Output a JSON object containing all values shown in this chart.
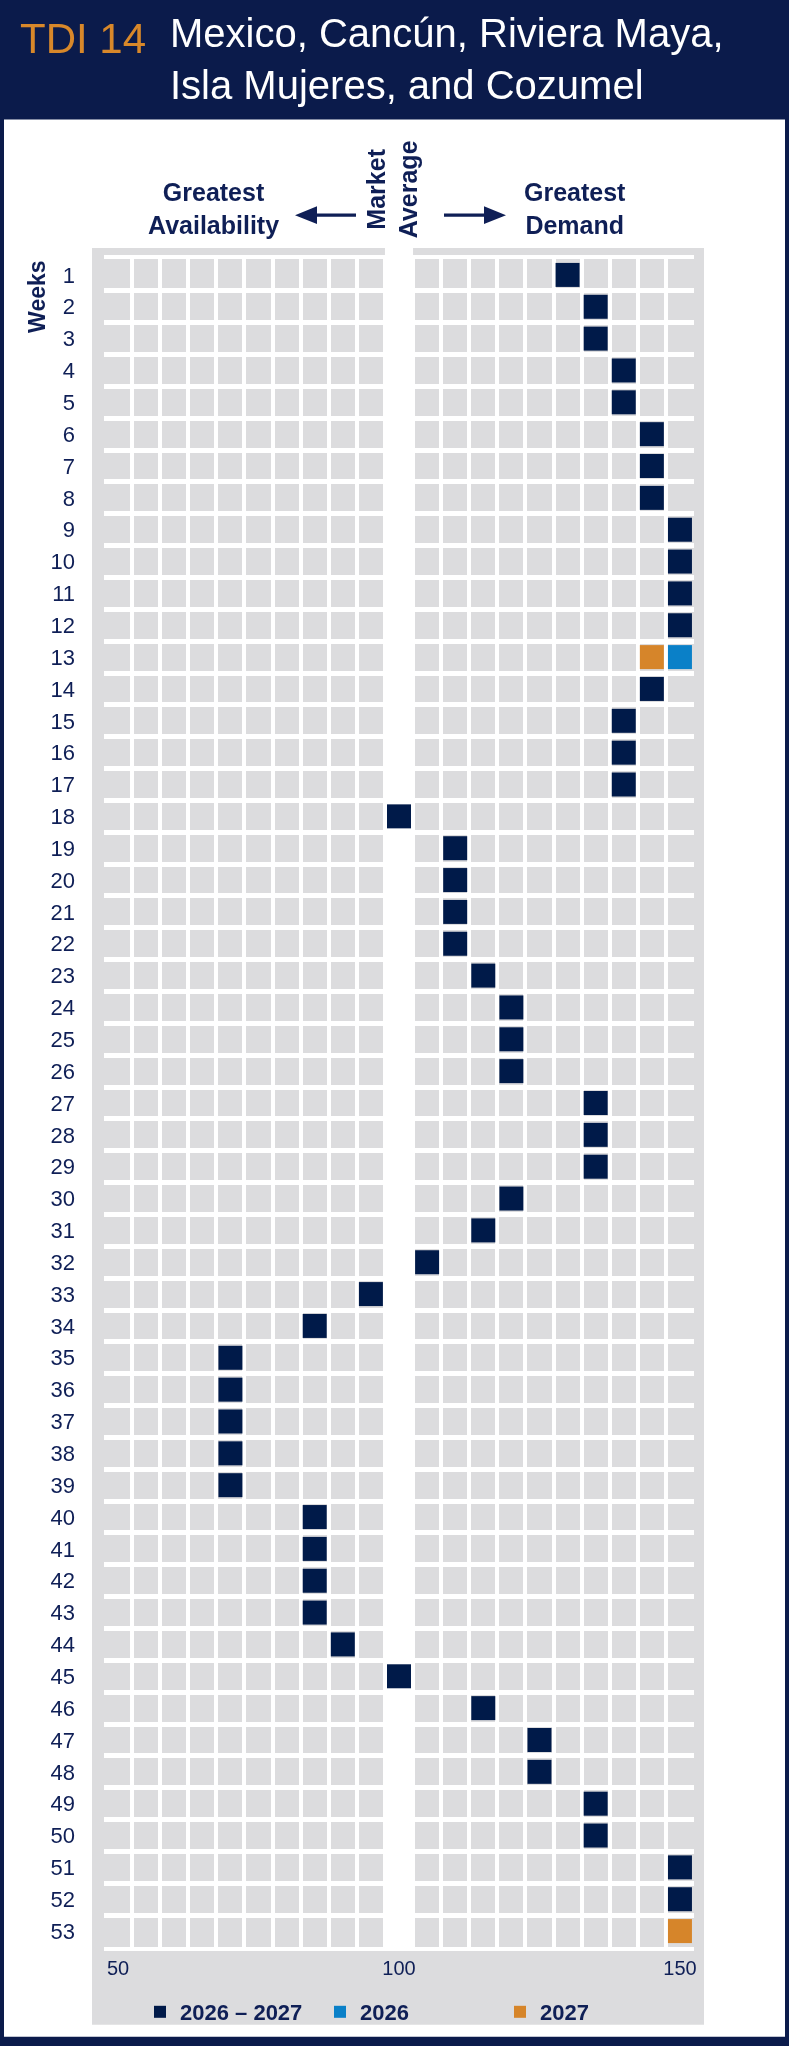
{
  "chart_data": {
    "type": "scatter",
    "orientation": "horizontal",
    "title": "TDI 14",
    "subtitle": "Mexico, Cancún, Riviera Maya, Isla Mujeres, and Cozumel",
    "ylabel": "Weeks",
    "annotations": [
      "Greatest Availability",
      "Greatest Demand"
    ],
    "categories": [
      "1",
      "2",
      "3",
      "4",
      "5",
      "6",
      "7",
      "8",
      "9",
      "10",
      "11",
      "12",
      "13",
      "14",
      "15",
      "16",
      "17",
      "18",
      "19",
      "20",
      "21",
      "22",
      "23",
      "24",
      "25",
      "26",
      "27",
      "28",
      "29",
      "30",
      "31",
      "32",
      "33",
      "34",
      "35",
      "36",
      "37",
      "38",
      "39",
      "40",
      "41",
      "42",
      "43",
      "44",
      "45",
      "46",
      "47",
      "48",
      "49",
      "50",
      "51",
      "52",
      "53"
    ],
    "series": [
      {
        "name": "2026 – 2027",
        "color": "#001a49",
        "values": [
          130,
          135,
          135,
          140,
          140,
          145,
          145,
          145,
          150,
          150,
          150,
          150,
          null,
          145,
          140,
          140,
          140,
          100,
          110,
          110,
          110,
          110,
          115,
          120,
          120,
          120,
          135,
          135,
          135,
          120,
          115,
          105,
          95,
          85,
          70,
          70,
          70,
          70,
          70,
          85,
          85,
          85,
          85,
          90,
          100,
          115,
          125,
          125,
          135,
          135,
          150,
          150,
          null
        ]
      },
      {
        "name": "2026",
        "color": "#0a80c8",
        "values": [
          null,
          null,
          null,
          null,
          null,
          null,
          null,
          null,
          null,
          null,
          null,
          null,
          150,
          null,
          null,
          null,
          null,
          null,
          null,
          null,
          null,
          null,
          null,
          null,
          null,
          null,
          null,
          null,
          null,
          null,
          null,
          null,
          null,
          null,
          null,
          null,
          null,
          null,
          null,
          null,
          null,
          null,
          null,
          null,
          null,
          null,
          null,
          null,
          null,
          null,
          null,
          null,
          null
        ]
      },
      {
        "name": "2027",
        "color": "#d6852a",
        "values": [
          null,
          null,
          null,
          null,
          null,
          null,
          null,
          null,
          null,
          null,
          null,
          null,
          145,
          null,
          null,
          null,
          null,
          null,
          null,
          null,
          null,
          null,
          null,
          null,
          null,
          null,
          null,
          null,
          null,
          null,
          null,
          null,
          null,
          null,
          null,
          null,
          null,
          null,
          null,
          null,
          null,
          null,
          null,
          null,
          null,
          null,
          null,
          null,
          null,
          null,
          null,
          null,
          150
        ]
      }
    ],
    "xlim": [
      47.5,
      152.5
    ],
    "xticks": [
      50,
      100,
      150
    ],
    "bands": [
      {
        "axis": "x",
        "from": 97.5,
        "to": 102.5,
        "label": "Market Average",
        "color": "#ffffff"
      }
    ],
    "grid": true,
    "legend": "bottom",
    "marker": "square"
  }
}
